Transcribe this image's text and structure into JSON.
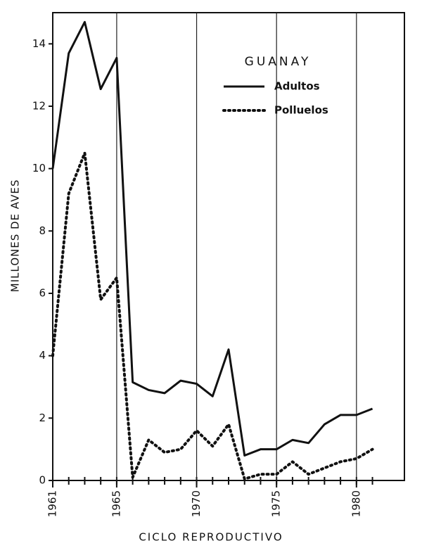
{
  "chart_data": {
    "type": "line",
    "title": "GUANAY",
    "x_label": "CICLO REPRODUCTIVO",
    "y_label": "MILLONES DE AVES",
    "x": [
      1961,
      1962,
      1963,
      1964,
      1965,
      1966,
      1967,
      1968,
      1969,
      1970,
      1971,
      1972,
      1973,
      1974,
      1975,
      1976,
      1977,
      1978,
      1979,
      1980,
      1981
    ],
    "series": [
      {
        "name": "Adultos",
        "color": "#111111",
        "style": "solid",
        "values": [
          10.0,
          13.7,
          14.7,
          12.55,
          13.55,
          3.15,
          2.9,
          2.8,
          3.2,
          3.1,
          2.7,
          4.2,
          0.8,
          1.0,
          1.0,
          1.3,
          1.2,
          1.8,
          2.1,
          2.1,
          2.3
        ]
      },
      {
        "name": "Polluelos",
        "color": "#111111",
        "style": "dotted",
        "values": [
          4.0,
          9.2,
          10.5,
          5.8,
          6.5,
          0.1,
          1.3,
          0.9,
          1.0,
          1.6,
          1.1,
          1.8,
          0.05,
          0.2,
          0.2,
          0.6,
          0.2,
          0.4,
          0.6,
          0.7,
          1.0
        ]
      }
    ],
    "xlim": [
      1961,
      1983
    ],
    "xticks": [
      1961,
      1965,
      1970,
      1975,
      1980
    ],
    "ylim": [
      0,
      15
    ],
    "yticks": [
      0,
      2,
      4,
      6,
      8,
      10,
      12,
      14
    ],
    "grid": "x"
  }
}
